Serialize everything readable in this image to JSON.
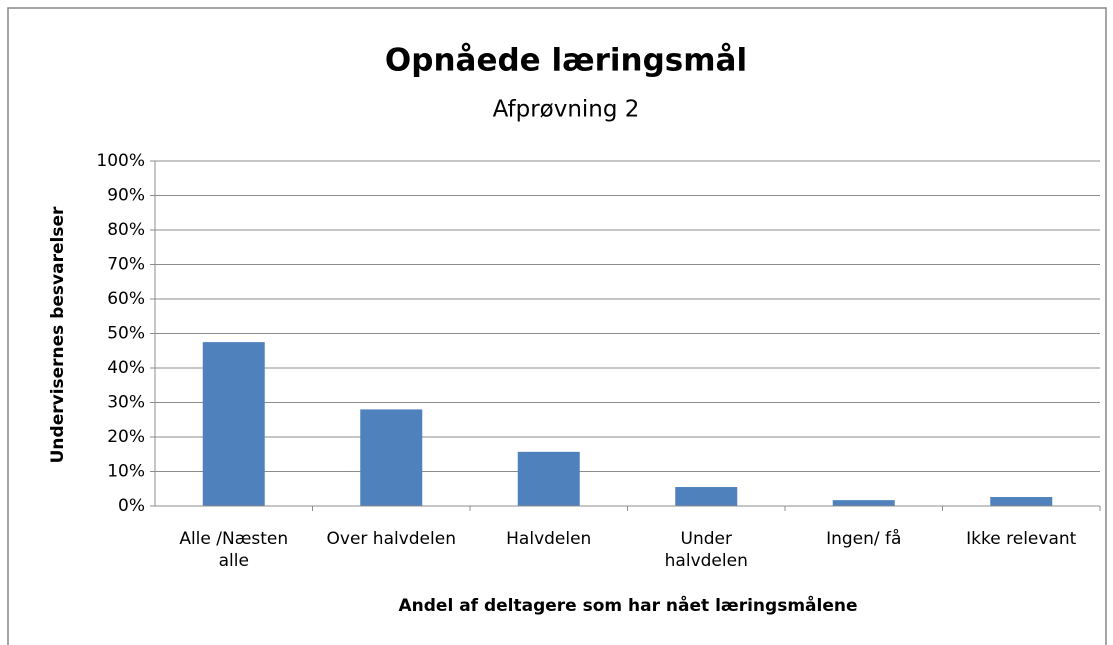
{
  "chart_data": {
    "type": "bar",
    "title": "Opnåede læringsmål",
    "subtitle": "Afprøvning 2",
    "x_label": "Andel af deltagere som har nået læringsmålene",
    "y_label": "Undervisernes besvarelser",
    "categories": [
      "Alle /Næsten\nalle",
      "Over halvdelen",
      "Halvdelen",
      "Under\nhalvdelen",
      "Ingen/ få",
      "Ikke relevant"
    ],
    "values": [
      47.5,
      28,
      15.7,
      5.5,
      1.7,
      2.6
    ],
    "color": "#4f81bd",
    "ylim": [
      0,
      100
    ],
    "yticks": [
      {
        "value": 0,
        "label": "0%"
      },
      {
        "value": 10,
        "label": "10%"
      },
      {
        "value": 20,
        "label": "20%"
      },
      {
        "value": 30,
        "label": "30%"
      },
      {
        "value": 40,
        "label": "40%"
      },
      {
        "value": 50,
        "label": "50%"
      },
      {
        "value": 60,
        "label": "60%"
      },
      {
        "value": 70,
        "label": "70%"
      },
      {
        "value": 80,
        "label": "80%"
      },
      {
        "value": 90,
        "label": "90%"
      },
      {
        "value": 100,
        "label": "100%"
      }
    ],
    "grid": true
  }
}
